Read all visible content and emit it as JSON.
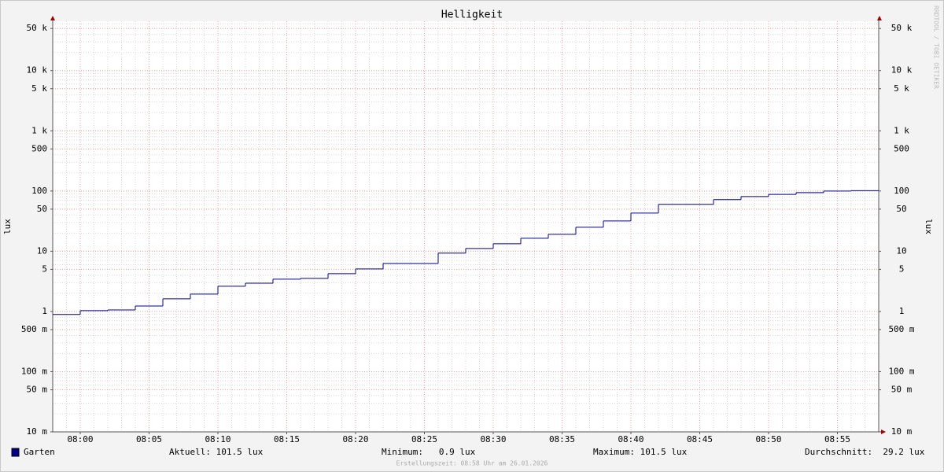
{
  "chart_data": {
    "type": "line",
    "title": "Helligkeit",
    "ylabel": "lux",
    "x": [
      "07:58",
      "08:00",
      "08:02",
      "08:04",
      "08:06",
      "08:08",
      "08:10",
      "08:12",
      "08:14",
      "08:16",
      "08:18",
      "08:20",
      "08:22",
      "08:24",
      "08:26",
      "08:28",
      "08:30",
      "08:32",
      "08:34",
      "08:36",
      "08:38",
      "08:40",
      "08:42",
      "08:44",
      "08:46",
      "08:48",
      "08:50",
      "08:52",
      "08:54",
      "08:56"
    ],
    "series": [
      {
        "name": "Garten",
        "color": "#00008b",
        "values": [
          0.89,
          1.03,
          1.06,
          1.23,
          1.62,
          1.94,
          2.62,
          2.95,
          3.43,
          3.54,
          4.24,
          5.08,
          6.27,
          6.27,
          9.3,
          11.1,
          13.3,
          16.4,
          19.1,
          25.0,
          31.8,
          43,
          60,
          60,
          72,
          81,
          88,
          94,
          100,
          101.5
        ]
      }
    ],
    "xlim": [
      "07:58",
      "08:58"
    ],
    "xticks": [
      "08:00",
      "08:05",
      "08:10",
      "08:15",
      "08:20",
      "08:25",
      "08:30",
      "08:35",
      "08:40",
      "08:45",
      "08:50",
      "08:55"
    ],
    "ylim": [
      0.01,
      66000
    ],
    "log_scale": true,
    "grid": true,
    "yticks": [
      {
        "value": 0.01,
        "label": "10 m"
      },
      {
        "value": 0.05,
        "label": "50 m"
      },
      {
        "value": 0.1,
        "label": "100 m"
      },
      {
        "value": 0.5,
        "label": "500 m"
      },
      1,
      5,
      10,
      50,
      100,
      500,
      {
        "value": 1000,
        "label": "1 k"
      },
      {
        "value": 5000,
        "label": "5 k"
      },
      {
        "value": 10000,
        "label": "10 k"
      },
      {
        "value": 50000,
        "label": "50 k"
      }
    ],
    "stats": [
      "Aktuell: 101.5 lux",
      "Minimum:   0.9 lux",
      "Maximum: 101.5 lux",
      "Durchschnitt:  29.2 lux"
    ],
    "footer": "Erstellungszeit: 08:58 Uhr am 26.01.2026",
    "watermark": "RRDTOOL / TOBI OETIKER"
  }
}
